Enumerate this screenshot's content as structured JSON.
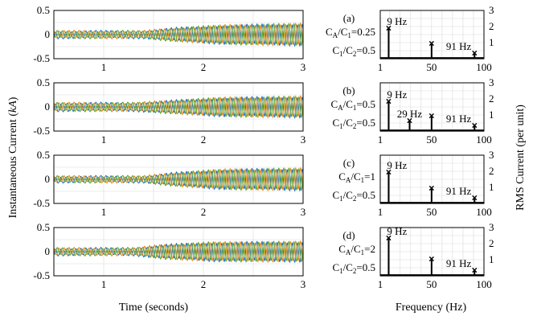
{
  "figure": {
    "ylabel_left": "Instantaneous Current (kA)",
    "ylabel_left_prefix": "Instantaneous Current (",
    "ylabel_left_unit": "kA",
    "ylabel_left_suffix": ")",
    "xlabel_left": "Time (seconds)",
    "ylabel_right": "RMS Current (per unit)",
    "xlabel_right": "Frequency (Hz)",
    "colors": {
      "phase_a": "#1f6fbf",
      "phase_b": "#e8891c",
      "phase_c": "#5aa02c",
      "grid": "#d9d9d9",
      "axis": "#000000"
    }
  },
  "chart_data": [
    {
      "type": "line",
      "panel": "time-a",
      "xlabel": "",
      "ylabel": "",
      "xlim": [
        0.5,
        3
      ],
      "ylim": [
        -0.5,
        0.5
      ],
      "xticks": [
        1,
        2,
        3
      ],
      "yticks": [
        0.5,
        0,
        -0.5
      ],
      "ytick_labels": [
        "0.5",
        "0",
        "-0.5"
      ],
      "grid": true,
      "series": [
        {
          "phase": "a",
          "x": [
            0.5,
            1.4,
            1.7,
            2.2,
            3.0
          ],
          "amplitude": [
            0.07,
            0.07,
            0.13,
            0.19,
            0.22
          ]
        },
        {
          "phase": "b",
          "x": [
            0.5,
            1.4,
            1.7,
            2.2,
            3.0
          ],
          "amplitude": [
            0.07,
            0.07,
            0.13,
            0.19,
            0.22
          ]
        },
        {
          "phase": "c",
          "x": [
            0.5,
            1.4,
            1.7,
            2.2,
            3.0
          ],
          "amplitude": [
            0.07,
            0.07,
            0.13,
            0.19,
            0.22
          ]
        }
      ],
      "osc_frequency_hz": 9
    },
    {
      "type": "line",
      "panel": "time-b",
      "xlim": [
        0.5,
        3
      ],
      "ylim": [
        -0.5,
        0.5
      ],
      "xticks": [
        1,
        2,
        3
      ],
      "yticks": [
        0.5,
        0,
        -0.5
      ],
      "ytick_labels": [
        "0.5",
        "0",
        "-0.5"
      ],
      "grid": true,
      "series": [
        {
          "phase": "a",
          "x": [
            0.5,
            1.3,
            1.7,
            2.2,
            3.0
          ],
          "amplitude": [
            0.08,
            0.08,
            0.13,
            0.19,
            0.21
          ]
        },
        {
          "phase": "b",
          "x": [
            0.5,
            1.3,
            1.7,
            2.2,
            3.0
          ],
          "amplitude": [
            0.08,
            0.08,
            0.13,
            0.19,
            0.21
          ]
        },
        {
          "phase": "c",
          "x": [
            0.5,
            1.3,
            1.7,
            2.2,
            3.0
          ],
          "amplitude": [
            0.08,
            0.08,
            0.13,
            0.19,
            0.21
          ]
        }
      ],
      "osc_frequency_hz": 9
    },
    {
      "type": "line",
      "panel": "time-c",
      "xlim": [
        0.5,
        3
      ],
      "ylim": [
        -0.5,
        0.5
      ],
      "xticks": [
        1,
        2,
        3
      ],
      "yticks": [
        0.5,
        0,
        -0.5
      ],
      "ytick_labels": [
        "0.5",
        "0",
        "-0.5"
      ],
      "grid": true,
      "series": [
        {
          "phase": "a",
          "x": [
            0.5,
            1.4,
            1.7,
            2.2,
            3.0
          ],
          "amplitude": [
            0.06,
            0.06,
            0.13,
            0.2,
            0.22
          ]
        },
        {
          "phase": "b",
          "x": [
            0.5,
            1.4,
            1.7,
            2.2,
            3.0
          ],
          "amplitude": [
            0.06,
            0.06,
            0.13,
            0.2,
            0.22
          ]
        },
        {
          "phase": "c",
          "x": [
            0.5,
            1.4,
            1.7,
            2.2,
            3.0
          ],
          "amplitude": [
            0.06,
            0.06,
            0.13,
            0.2,
            0.22
          ]
        }
      ],
      "osc_frequency_hz": 9
    },
    {
      "type": "line",
      "panel": "time-d",
      "xlim": [
        0.5,
        3
      ],
      "ylim": [
        -0.5,
        0.5
      ],
      "xticks": [
        1,
        2,
        3
      ],
      "yticks": [
        0.5,
        0,
        -0.5
      ],
      "ytick_labels": [
        "0.5",
        "0",
        "-0.5"
      ],
      "grid": true,
      "series": [
        {
          "phase": "a",
          "x": [
            0.5,
            1.3,
            1.6,
            2.1,
            3.0
          ],
          "amplitude": [
            0.07,
            0.07,
            0.14,
            0.19,
            0.2
          ]
        },
        {
          "phase": "b",
          "x": [
            0.5,
            1.3,
            1.6,
            2.1,
            3.0
          ],
          "amplitude": [
            0.07,
            0.07,
            0.14,
            0.19,
            0.2
          ]
        },
        {
          "phase": "c",
          "x": [
            0.5,
            1.3,
            1.6,
            2.1,
            3.0
          ],
          "amplitude": [
            0.07,
            0.07,
            0.14,
            0.19,
            0.2
          ]
        }
      ],
      "osc_frequency_hz": 9
    },
    {
      "type": "bar",
      "panel": "freq-a",
      "label": "(a)",
      "ratio_lines": [
        {
          "pre": "C",
          "s1": "A",
          "mid": "/C",
          "s2": "1",
          "post": "=0.25"
        },
        {
          "pre": "C",
          "s1": "1",
          "mid": "/C",
          "s2": "2",
          "post": "=0.5"
        }
      ],
      "xlim": [
        1,
        100
      ],
      "ylim": [
        0,
        3
      ],
      "xticks": [
        1,
        50,
        100
      ],
      "yticks": [
        1,
        2,
        3
      ],
      "grid": true,
      "x": [
        9,
        50,
        91
      ],
      "values": [
        1.9,
        0.95,
        0.35
      ],
      "peak_labels": [
        {
          "x": 9,
          "text": "9 Hz"
        },
        {
          "x": 91,
          "text": "91 Hz"
        }
      ]
    },
    {
      "type": "bar",
      "panel": "freq-b",
      "label": "(b)",
      "ratio_lines": [
        {
          "pre": "C",
          "s1": "A",
          "mid": "/C",
          "s2": "1",
          "post": "=0.5"
        },
        {
          "pre": "C",
          "s1": "1",
          "mid": "/C",
          "s2": "2",
          "post": "=0.5"
        }
      ],
      "xlim": [
        1,
        100
      ],
      "ylim": [
        0,
        3
      ],
      "xticks": [
        1,
        50,
        100
      ],
      "yticks": [
        1,
        2,
        3
      ],
      "grid": true,
      "x": [
        9,
        29,
        50,
        91
      ],
      "values": [
        1.85,
        0.65,
        0.95,
        0.35
      ],
      "peak_labels": [
        {
          "x": 9,
          "text": "9 Hz"
        },
        {
          "x": 29,
          "text": "29 Hz"
        },
        {
          "x": 91,
          "text": "91 Hz"
        }
      ]
    },
    {
      "type": "bar",
      "panel": "freq-c",
      "label": "(c)",
      "ratio_lines": [
        {
          "pre": "C",
          "s1": "A",
          "mid": "/C",
          "s2": "1",
          "post": "=1"
        },
        {
          "pre": "C",
          "s1": "1",
          "mid": "/C",
          "s2": "2",
          "post": "=0.5"
        }
      ],
      "xlim": [
        1,
        100
      ],
      "ylim": [
        0,
        3
      ],
      "xticks": [
        1,
        50,
        100
      ],
      "yticks": [
        1,
        2,
        3
      ],
      "grid": true,
      "x": [
        9,
        50,
        91
      ],
      "values": [
        1.95,
        0.95,
        0.35
      ],
      "peak_labels": [
        {
          "x": 9,
          "text": "9 Hz"
        },
        {
          "x": 91,
          "text": "91 Hz"
        }
      ]
    },
    {
      "type": "bar",
      "panel": "freq-d",
      "label": "(d)",
      "ratio_lines": [
        {
          "pre": "C",
          "s1": "A",
          "mid": "/C",
          "s2": "1",
          "post": "=2"
        },
        {
          "pre": "C",
          "s1": "1",
          "mid": "/C",
          "s2": "2",
          "post": "=0.5"
        }
      ],
      "xlim": [
        1,
        100
      ],
      "ylim": [
        0,
        3
      ],
      "xticks": [
        1,
        50,
        100
      ],
      "yticks": [
        1,
        2,
        3
      ],
      "grid": true,
      "x": [
        9,
        50,
        91
      ],
      "values": [
        2.35,
        1.05,
        0.35
      ],
      "peak_labels": [
        {
          "x": 9,
          "text": "9 Hz"
        },
        {
          "x": 91,
          "text": "91 Hz"
        }
      ]
    }
  ]
}
